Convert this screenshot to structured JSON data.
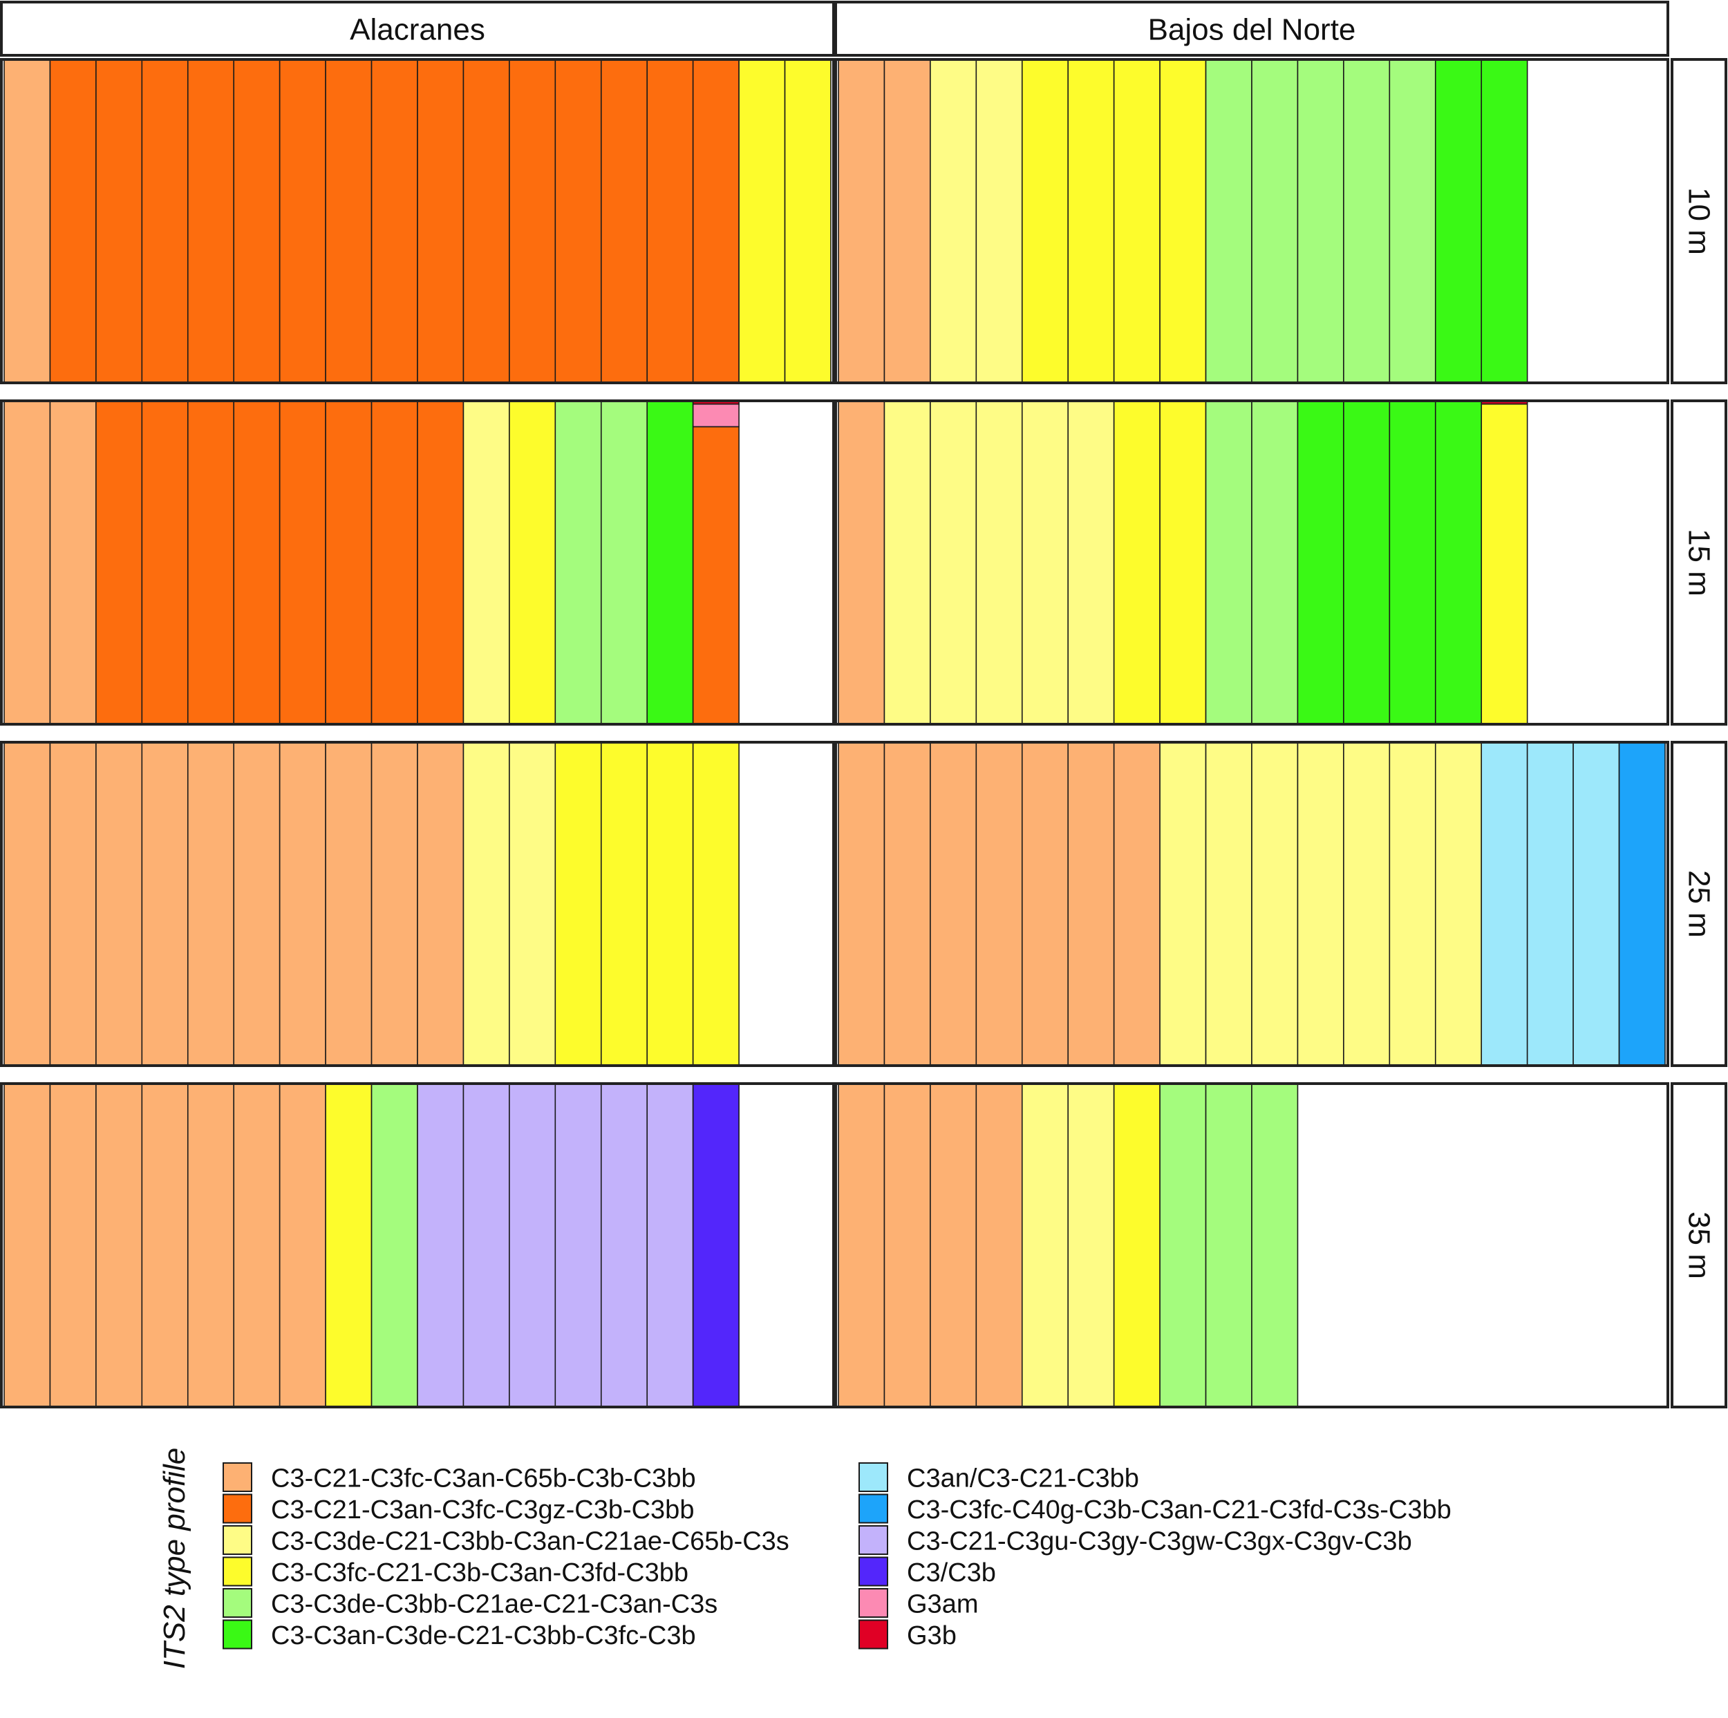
{
  "chart_data": {
    "type": "bar",
    "subtype": "faceted stacked proportion bars (one bar per sample, stacked to 1.0)",
    "sites": [
      "Alacranes",
      "Bajos del Norte"
    ],
    "depths": [
      "10 m",
      "15 m",
      "25 m",
      "35 m"
    ],
    "legend": {
      "title": "ITS2 type profile",
      "placement": "bottom",
      "entries": [
        {
          "id": "p1",
          "label": "C3-C21-C3fc-C3an-C65b-C3b-C3bb",
          "color": "#FDB173"
        },
        {
          "id": "p2",
          "label": "C3-C21-C3an-C3fc-C3gz-C3b-C3bb",
          "color": "#FD6D0E"
        },
        {
          "id": "p3",
          "label": "C3-C3de-C21-C3bb-C3an-C21ae-C65b-C3s",
          "color": "#FEFC86"
        },
        {
          "id": "p4",
          "label": "C3-C3fc-C21-C3b-C3an-C3fd-C3bb",
          "color": "#FDFC2C"
        },
        {
          "id": "p5",
          "label": "C3-C3de-C3bb-C21ae-C21-C3an-C3s",
          "color": "#A4FC7D"
        },
        {
          "id": "p6",
          "label": "C3-C3an-C3de-C21-C3bb-C3fc-C3b",
          "color": "#3AF915"
        },
        {
          "id": "p7",
          "label": "C3an/C3-C21-C3bb",
          "color": "#9DE8FB"
        },
        {
          "id": "p8",
          "label": "C3-C3fc-C40g-C3b-C3an-C21-C3fd-C3s-C3bb",
          "color": "#1DA4FA"
        },
        {
          "id": "p9",
          "label": "C3-C21-C3gu-C3gy-C3gw-C3gx-C3gv-C3b",
          "color": "#C3B2FB"
        },
        {
          "id": "p10",
          "label": "C3/C3b",
          "color": "#5326FB"
        },
        {
          "id": "p11",
          "label": "G3am",
          "color": "#FC8AB3"
        },
        {
          "id": "p12",
          "label": "G3b",
          "color": "#E00025"
        }
      ]
    },
    "panels": [
      {
        "site": "Alacranes",
        "depth": "10 m",
        "samples": [
          [
            [
              "p1",
              1
            ]
          ],
          [
            [
              "p2",
              1
            ]
          ],
          [
            [
              "p2",
              1
            ]
          ],
          [
            [
              "p2",
              1
            ]
          ],
          [
            [
              "p2",
              1
            ]
          ],
          [
            [
              "p2",
              1
            ]
          ],
          [
            [
              "p2",
              1
            ]
          ],
          [
            [
              "p2",
              1
            ]
          ],
          [
            [
              "p2",
              1
            ]
          ],
          [
            [
              "p2",
              1
            ]
          ],
          [
            [
              "p2",
              1
            ]
          ],
          [
            [
              "p2",
              1
            ]
          ],
          [
            [
              "p2",
              1
            ]
          ],
          [
            [
              "p2",
              1
            ]
          ],
          [
            [
              "p2",
              1
            ]
          ],
          [
            [
              "p2",
              1
            ]
          ],
          [
            [
              "p4",
              1
            ]
          ],
          [
            [
              "p4",
              1
            ]
          ]
        ]
      },
      {
        "site": "Bajos del Norte",
        "depth": "10 m",
        "samples": [
          [
            [
              "p1",
              1
            ]
          ],
          [
            [
              "p1",
              1
            ]
          ],
          [
            [
              "p3",
              1
            ]
          ],
          [
            [
              "p3",
              1
            ]
          ],
          [
            [
              "p4",
              1
            ]
          ],
          [
            [
              "p4",
              1
            ]
          ],
          [
            [
              "p4",
              1
            ]
          ],
          [
            [
              "p4",
              1
            ]
          ],
          [
            [
              "p5",
              1
            ]
          ],
          [
            [
              "p5",
              1
            ]
          ],
          [
            [
              "p5",
              1
            ]
          ],
          [
            [
              "p5",
              1
            ]
          ],
          [
            [
              "p5",
              1
            ]
          ],
          [
            [
              "p6",
              1
            ]
          ],
          [
            [
              "p6",
              1
            ]
          ]
        ]
      },
      {
        "site": "Alacranes",
        "depth": "15 m",
        "samples": [
          [
            [
              "p1",
              1
            ]
          ],
          [
            [
              "p1",
              1
            ]
          ],
          [
            [
              "p2",
              1
            ]
          ],
          [
            [
              "p2",
              1
            ]
          ],
          [
            [
              "p2",
              1
            ]
          ],
          [
            [
              "p2",
              1
            ]
          ],
          [
            [
              "p2",
              1
            ]
          ],
          [
            [
              "p2",
              1
            ]
          ],
          [
            [
              "p2",
              1
            ]
          ],
          [
            [
              "p2",
              1
            ]
          ],
          [
            [
              "p3",
              1
            ]
          ],
          [
            [
              "p4",
              1
            ]
          ],
          [
            [
              "p5",
              1
            ]
          ],
          [
            [
              "p5",
              1
            ]
          ],
          [
            [
              "p6",
              1
            ]
          ],
          [
            [
              "p2",
              0.92
            ],
            [
              "p11",
              0.07
            ],
            [
              "p12",
              0.01
            ]
          ]
        ]
      },
      {
        "site": "Bajos del Norte",
        "depth": "15 m",
        "samples": [
          [
            [
              "p1",
              1
            ]
          ],
          [
            [
              "p3",
              1
            ]
          ],
          [
            [
              "p3",
              1
            ]
          ],
          [
            [
              "p3",
              1
            ]
          ],
          [
            [
              "p3",
              1
            ]
          ],
          [
            [
              "p3",
              1
            ]
          ],
          [
            [
              "p4",
              1
            ]
          ],
          [
            [
              "p4",
              1
            ]
          ],
          [
            [
              "p5",
              1
            ]
          ],
          [
            [
              "p5",
              1
            ]
          ],
          [
            [
              "p6",
              1
            ]
          ],
          [
            [
              "p6",
              1
            ]
          ],
          [
            [
              "p6",
              1
            ]
          ],
          [
            [
              "p6",
              1
            ]
          ],
          [
            [
              "p4",
              0.99
            ],
            [
              "p12",
              0.01
            ]
          ]
        ]
      },
      {
        "site": "Alacranes",
        "depth": "25 m",
        "samples": [
          [
            [
              "p1",
              1
            ]
          ],
          [
            [
              "p1",
              1
            ]
          ],
          [
            [
              "p1",
              1
            ]
          ],
          [
            [
              "p1",
              1
            ]
          ],
          [
            [
              "p1",
              1
            ]
          ],
          [
            [
              "p1",
              1
            ]
          ],
          [
            [
              "p1",
              1
            ]
          ],
          [
            [
              "p1",
              1
            ]
          ],
          [
            [
              "p1",
              1
            ]
          ],
          [
            [
              "p1",
              1
            ]
          ],
          [
            [
              "p3",
              1
            ]
          ],
          [
            [
              "p3",
              1
            ]
          ],
          [
            [
              "p4",
              1
            ]
          ],
          [
            [
              "p4",
              1
            ]
          ],
          [
            [
              "p4",
              1
            ]
          ],
          [
            [
              "p4",
              1
            ]
          ]
        ]
      },
      {
        "site": "Bajos del Norte",
        "depth": "25 m",
        "samples": [
          [
            [
              "p1",
              1
            ]
          ],
          [
            [
              "p1",
              1
            ]
          ],
          [
            [
              "p1",
              1
            ]
          ],
          [
            [
              "p1",
              1
            ]
          ],
          [
            [
              "p1",
              1
            ]
          ],
          [
            [
              "p1",
              1
            ]
          ],
          [
            [
              "p1",
              1
            ]
          ],
          [
            [
              "p3",
              1
            ]
          ],
          [
            [
              "p3",
              1
            ]
          ],
          [
            [
              "p3",
              1
            ]
          ],
          [
            [
              "p3",
              1
            ]
          ],
          [
            [
              "p3",
              1
            ]
          ],
          [
            [
              "p3",
              1
            ]
          ],
          [
            [
              "p3",
              1
            ]
          ],
          [
            [
              "p7",
              1
            ]
          ],
          [
            [
              "p7",
              1
            ]
          ],
          [
            [
              "p7",
              1
            ]
          ],
          [
            [
              "p8",
              1
            ]
          ]
        ]
      },
      {
        "site": "Alacranes",
        "depth": "35 m",
        "samples": [
          [
            [
              "p1",
              1
            ]
          ],
          [
            [
              "p1",
              1
            ]
          ],
          [
            [
              "p1",
              1
            ]
          ],
          [
            [
              "p1",
              1
            ]
          ],
          [
            [
              "p1",
              1
            ]
          ],
          [
            [
              "p1",
              1
            ]
          ],
          [
            [
              "p1",
              1
            ]
          ],
          [
            [
              "p4",
              1
            ]
          ],
          [
            [
              "p5",
              1
            ]
          ],
          [
            [
              "p9",
              1
            ]
          ],
          [
            [
              "p9",
              1
            ]
          ],
          [
            [
              "p9",
              1
            ]
          ],
          [
            [
              "p9",
              1
            ]
          ],
          [
            [
              "p9",
              1
            ]
          ],
          [
            [
              "p9",
              1
            ]
          ],
          [
            [
              "p10",
              1
            ]
          ]
        ]
      },
      {
        "site": "Bajos del Norte",
        "depth": "35 m",
        "samples": [
          [
            [
              "p1",
              1
            ]
          ],
          [
            [
              "p1",
              1
            ]
          ],
          [
            [
              "p1",
              1
            ]
          ],
          [
            [
              "p1",
              1
            ]
          ],
          [
            [
              "p3",
              1
            ]
          ],
          [
            [
              "p3",
              1
            ]
          ],
          [
            [
              "p4",
              1
            ]
          ],
          [
            [
              "p5",
              1
            ]
          ],
          [
            [
              "p5",
              1
            ]
          ],
          [
            [
              "p5",
              1
            ]
          ]
        ]
      }
    ],
    "max_samples_per_panel": 18,
    "ylim": [
      0,
      1
    ],
    "grid": false
  }
}
